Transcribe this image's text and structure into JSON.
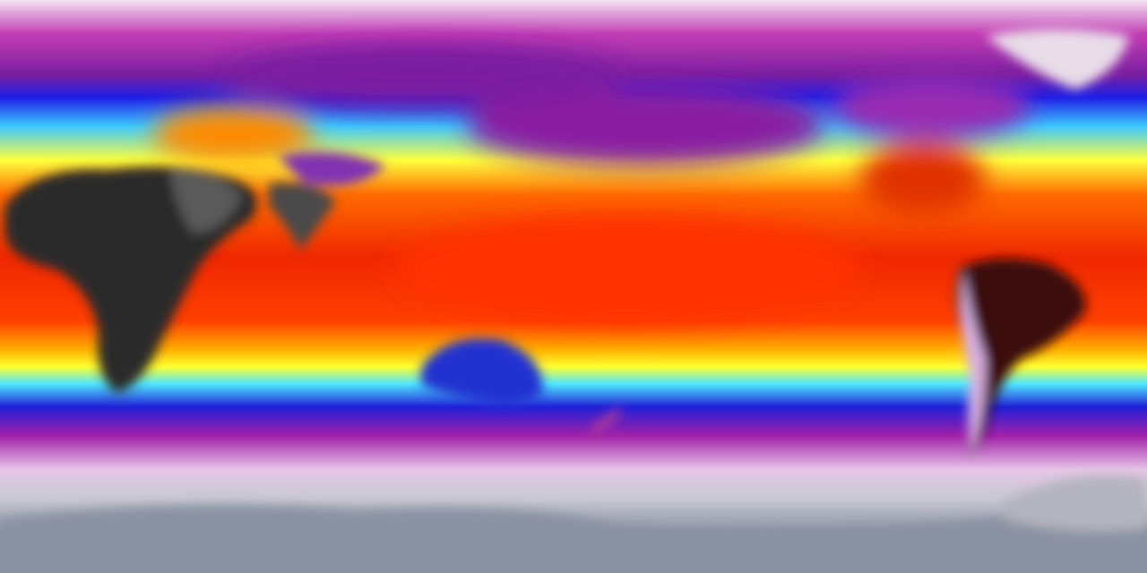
{
  "map": {
    "colormap": [
      "#f2e4f2",
      "#c23cb4",
      "#7a1fa0",
      "#1e1ee6",
      "#3cc8ff",
      "#ffff3c",
      "#ff9a00",
      "#ff3000",
      "#e01800",
      "#3a3a3a"
    ],
    "colors": {
      "polar_north": "#f2e4f2",
      "magenta": "#b030a8",
      "blue": "#1e1ee6",
      "cyan": "#50e8ff",
      "yellow": "#ffff30",
      "orange": "#ff9000",
      "red": "#f02800",
      "hot_land": "#2a2a2a",
      "antarctica": "#8a92a2"
    }
  }
}
